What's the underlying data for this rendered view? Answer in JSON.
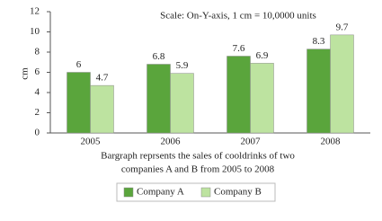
{
  "chart_data": {
    "type": "bar",
    "title": "Scale: On-Y-axis, 1 cm = 10,0000 units",
    "y_label": "cm",
    "categories": [
      "2005",
      "2006",
      "2007",
      "2008"
    ],
    "series": [
      {
        "name": "Company A",
        "color": "#5aa53c",
        "values": [
          6,
          6.8,
          7.6,
          8.3
        ]
      },
      {
        "name": "Company B",
        "color": "#bde3a0",
        "values": [
          4.7,
          5.9,
          6.9,
          9.7
        ]
      }
    ],
    "ylim": [
      0,
      12
    ],
    "yticks": [
      0,
      2,
      4,
      6,
      8,
      10,
      12
    ],
    "grid": false,
    "caption": [
      "Bargraph reprsents the sales of cooldrinks of two",
      "companies A and B from 2005 to 2008"
    ],
    "legend": "bottom"
  }
}
